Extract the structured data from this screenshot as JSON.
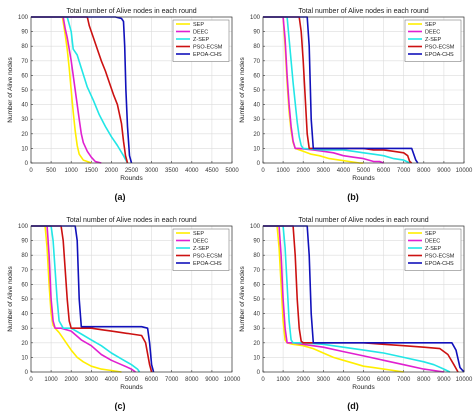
{
  "colors": {
    "SEP": "#ffee00",
    "DEEC": "#e020d0",
    "Z-SEP": "#22e6e6",
    "PSO-ECSM": "#cc1111",
    "EPOA-CHS": "#1111bb"
  },
  "chart_data": [
    {
      "panel_label": "(a)",
      "type": "line",
      "title": "Total number of Alive nodes in each round",
      "xlabel": "Rounds",
      "ylabel": "Number of Alive nodes",
      "xlim": [
        0,
        5000
      ],
      "ylim": [
        0,
        100
      ],
      "xticks": [
        "0",
        "500",
        "1000",
        "1500",
        "2000",
        "2500",
        "3000",
        "3500",
        "4000",
        "4500",
        "5000"
      ],
      "yticks": [
        "0",
        "10",
        "20",
        "30",
        "40",
        "50",
        "60",
        "70",
        "80",
        "90",
        "100"
      ],
      "grid": true,
      "legend": "top-right",
      "series": [
        {
          "name": "SEP",
          "x": [
            0,
            780,
            850,
            900,
            950,
            1000,
            1050,
            1100,
            1150,
            1200,
            1300,
            1400,
            1500
          ],
          "y": [
            100,
            100,
            88,
            78,
            65,
            50,
            35,
            22,
            12,
            6,
            2,
            1,
            0
          ]
        },
        {
          "name": "DEEC",
          "x": [
            0,
            800,
            850,
            900,
            950,
            1000,
            1050,
            1100,
            1150,
            1200,
            1250,
            1300,
            1400,
            1500,
            1600,
            1750
          ],
          "y": [
            100,
            100,
            92,
            86,
            78,
            70,
            60,
            50,
            40,
            30,
            20,
            14,
            8,
            4,
            1,
            0
          ]
        },
        {
          "name": "Z-SEP",
          "x": [
            0,
            900,
            1000,
            1050,
            1150,
            1250,
            1400,
            1550,
            1700,
            1850,
            2000,
            2150,
            2300,
            2400
          ],
          "y": [
            100,
            100,
            90,
            78,
            74,
            65,
            52,
            43,
            33,
            25,
            18,
            12,
            5,
            0
          ]
        },
        {
          "name": "PSO-ECSM",
          "x": [
            0,
            1400,
            1450,
            1550,
            1650,
            1750,
            1850,
            1950,
            2050,
            2150,
            2250,
            2300,
            2350,
            2400
          ],
          "y": [
            100,
            100,
            94,
            86,
            78,
            70,
            63,
            55,
            47,
            40,
            27,
            15,
            5,
            0
          ]
        },
        {
          "name": "EPOA-CHS",
          "x": [
            0,
            2100,
            2250,
            2300,
            2330,
            2360,
            2400,
            2450,
            2500
          ],
          "y": [
            100,
            100,
            99,
            97,
            80,
            50,
            25,
            5,
            0
          ]
        }
      ]
    },
    {
      "panel_label": "(b)",
      "type": "line",
      "title": "Total number of Alive nodes in each round",
      "xlabel": "Rounds",
      "ylabel": "Number of Alive nodes",
      "xlim": [
        0,
        10000
      ],
      "ylim": [
        0,
        100
      ],
      "xticks": [
        "0",
        "1000",
        "2000",
        "3000",
        "4000",
        "5000",
        "6000",
        "7000",
        "8000",
        "9000",
        "10000"
      ],
      "yticks": [
        "0",
        "10",
        "20",
        "30",
        "40",
        "50",
        "60",
        "70",
        "80",
        "90",
        "100"
      ],
      "grid": true,
      "legend": "top-right",
      "series": [
        {
          "name": "SEP",
          "x": [
            0,
            1000,
            1100,
            1200,
            1300,
            1400,
            1500,
            1600,
            1800,
            2000,
            2400,
            2800,
            3300,
            3800,
            4300,
            4800,
            5000
          ],
          "y": [
            100,
            100,
            80,
            55,
            35,
            22,
            14,
            10,
            9,
            8,
            6,
            5,
            3,
            2,
            1,
            0,
            0
          ]
        },
        {
          "name": "DEEC",
          "x": [
            0,
            1000,
            1100,
            1200,
            1300,
            1400,
            1500,
            1600,
            1800,
            2500,
            3000,
            3500,
            4000,
            4500,
            5000,
            5500,
            5800,
            6000
          ],
          "y": [
            100,
            100,
            85,
            60,
            40,
            25,
            15,
            10,
            10,
            9,
            8,
            7,
            5,
            4,
            3,
            1,
            1,
            0
          ]
        },
        {
          "name": "Z-SEP",
          "x": [
            0,
            1200,
            1300,
            1500,
            1700,
            1800,
            1900,
            2000,
            3000,
            4000,
            4500,
            5000,
            5500,
            6000,
            6500,
            7000,
            7300
          ],
          "y": [
            100,
            100,
            85,
            55,
            28,
            18,
            12,
            10,
            9,
            9,
            8,
            7,
            6,
            5,
            3,
            2,
            0
          ]
        },
        {
          "name": "PSO-ECSM",
          "x": [
            0,
            1800,
            1900,
            2000,
            2100,
            2200,
            2300,
            2400,
            4000,
            5000,
            5500,
            6000,
            6500,
            7000,
            7200,
            7300,
            7400
          ],
          "y": [
            100,
            100,
            90,
            70,
            45,
            20,
            10,
            10,
            10,
            10,
            9,
            9,
            8,
            7,
            5,
            1,
            0
          ]
        },
        {
          "name": "EPOA-CHS",
          "x": [
            0,
            2200,
            2300,
            2400,
            2500,
            3000,
            4000,
            5000,
            6000,
            6500,
            7000,
            7400,
            7600,
            7700
          ],
          "y": [
            100,
            100,
            80,
            30,
            10,
            10,
            10,
            10,
            10,
            10,
            10,
            10,
            2,
            0
          ]
        }
      ]
    },
    {
      "panel_label": "(c)",
      "type": "line",
      "title": "Total number of Alive nodes in each round",
      "xlabel": "Rounds",
      "ylabel": "Number of Alive nodes",
      "xlim": [
        0,
        10000
      ],
      "ylim": [
        0,
        100
      ],
      "xticks": [
        "0",
        "1000",
        "2000",
        "3000",
        "4000",
        "5000",
        "6000",
        "7000",
        "8000",
        "9000",
        "10000"
      ],
      "yticks": [
        "0",
        "10",
        "20",
        "30",
        "40",
        "50",
        "60",
        "70",
        "80",
        "90",
        "100"
      ],
      "grid": true,
      "legend": "top-right",
      "series": [
        {
          "name": "SEP",
          "x": [
            0,
            700,
            800,
            900,
            1000,
            1100,
            1200,
            1400,
            1600,
            1800,
            2000,
            2300,
            2600,
            3000,
            3500,
            4000,
            4500
          ],
          "y": [
            100,
            100,
            85,
            60,
            40,
            32,
            30,
            27,
            23,
            19,
            15,
            10,
            7,
            4,
            2,
            1,
            0
          ]
        },
        {
          "name": "DEEC",
          "x": [
            0,
            800,
            900,
            1000,
            1100,
            1200,
            1500,
            2000,
            2500,
            3000,
            3500,
            4000,
            4500,
            5000,
            5200
          ],
          "y": [
            100,
            100,
            80,
            50,
            35,
            30,
            30,
            28,
            22,
            18,
            12,
            8,
            5,
            2,
            0
          ]
        },
        {
          "name": "Z-SEP",
          "x": [
            0,
            1000,
            1100,
            1200,
            1300,
            1400,
            1600,
            2000,
            2500,
            3000,
            3500,
            4000,
            4500,
            5000,
            5300,
            5400
          ],
          "y": [
            100,
            100,
            90,
            70,
            50,
            35,
            30,
            30,
            26,
            22,
            18,
            13,
            9,
            5,
            2,
            0
          ]
        },
        {
          "name": "PSO-ECSM",
          "x": [
            0,
            1500,
            1600,
            1700,
            1800,
            1900,
            2000,
            2500,
            3000,
            3500,
            4000,
            4500,
            5000,
            5500,
            5700,
            5900,
            6000
          ],
          "y": [
            100,
            100,
            90,
            70,
            50,
            35,
            30,
            30,
            30,
            29,
            28,
            27,
            26,
            25,
            20,
            5,
            0
          ]
        },
        {
          "name": "EPOA-CHS",
          "x": [
            0,
            2200,
            2300,
            2400,
            2500,
            3000,
            4000,
            5000,
            5500,
            5800,
            5900,
            6000,
            6100
          ],
          "y": [
            100,
            100,
            90,
            50,
            31,
            31,
            31,
            31,
            31,
            30,
            20,
            5,
            0
          ]
        }
      ]
    },
    {
      "panel_label": "(d)",
      "type": "line",
      "title": "Total number of Alive nodes in each round",
      "xlabel": "Rounds",
      "ylabel": "Number of Alive nodes",
      "xlim": [
        0,
        10000
      ],
      "ylim": [
        0,
        100
      ],
      "xticks": [
        "0",
        "1000",
        "2000",
        "3000",
        "4000",
        "5000",
        "6000",
        "7000",
        "8000",
        "9000",
        "10000"
      ],
      "yticks": [
        "0",
        "10",
        "20",
        "30",
        "40",
        "50",
        "60",
        "70",
        "80",
        "90",
        "100"
      ],
      "grid": true,
      "legend": "top-right",
      "series": [
        {
          "name": "SEP",
          "x": [
            0,
            700,
            800,
            900,
            1000,
            1100,
            1200,
            1500,
            2000,
            2500,
            3000,
            3500,
            4000,
            4500,
            5000,
            5500,
            6000,
            6500,
            7000
          ],
          "y": [
            100,
            100,
            85,
            60,
            35,
            22,
            20,
            19,
            18,
            16,
            13,
            10,
            8,
            6,
            4,
            3,
            2,
            1,
            0
          ]
        },
        {
          "name": "DEEC",
          "x": [
            0,
            800,
            900,
            1000,
            1100,
            1200,
            1500,
            2000,
            3000,
            4000,
            5000,
            6000,
            7000,
            8000,
            8500,
            9000
          ],
          "y": [
            100,
            100,
            80,
            50,
            30,
            20,
            20,
            19,
            17,
            14,
            11,
            8,
            5,
            2,
            1,
            0
          ]
        },
        {
          "name": "Z-SEP",
          "x": [
            0,
            1000,
            1100,
            1200,
            1300,
            1400,
            1500,
            2000,
            3000,
            4000,
            5000,
            6000,
            7000,
            8000,
            8500,
            9000,
            9300
          ],
          "y": [
            100,
            100,
            85,
            60,
            35,
            22,
            20,
            20,
            19,
            17,
            15,
            13,
            10,
            7,
            5,
            2,
            0
          ]
        },
        {
          "name": "PSO-ECSM",
          "x": [
            0,
            1500,
            1600,
            1700,
            1800,
            1900,
            2000,
            3000,
            4000,
            5000,
            6000,
            7000,
            8000,
            8800,
            9200,
            9500,
            9700
          ],
          "y": [
            100,
            100,
            80,
            50,
            30,
            21,
            20,
            20,
            20,
            20,
            19,
            18,
            17,
            16,
            12,
            5,
            0
          ]
        },
        {
          "name": "EPOA-CHS",
          "x": [
            0,
            2200,
            2300,
            2400,
            2500,
            3000,
            4000,
            5000,
            6000,
            7000,
            8000,
            9000,
            9400,
            9600,
            9800,
            10000
          ],
          "y": [
            100,
            100,
            80,
            40,
            20,
            20,
            20,
            20,
            20,
            20,
            20,
            20,
            20,
            15,
            3,
            0
          ]
        }
      ]
    }
  ]
}
